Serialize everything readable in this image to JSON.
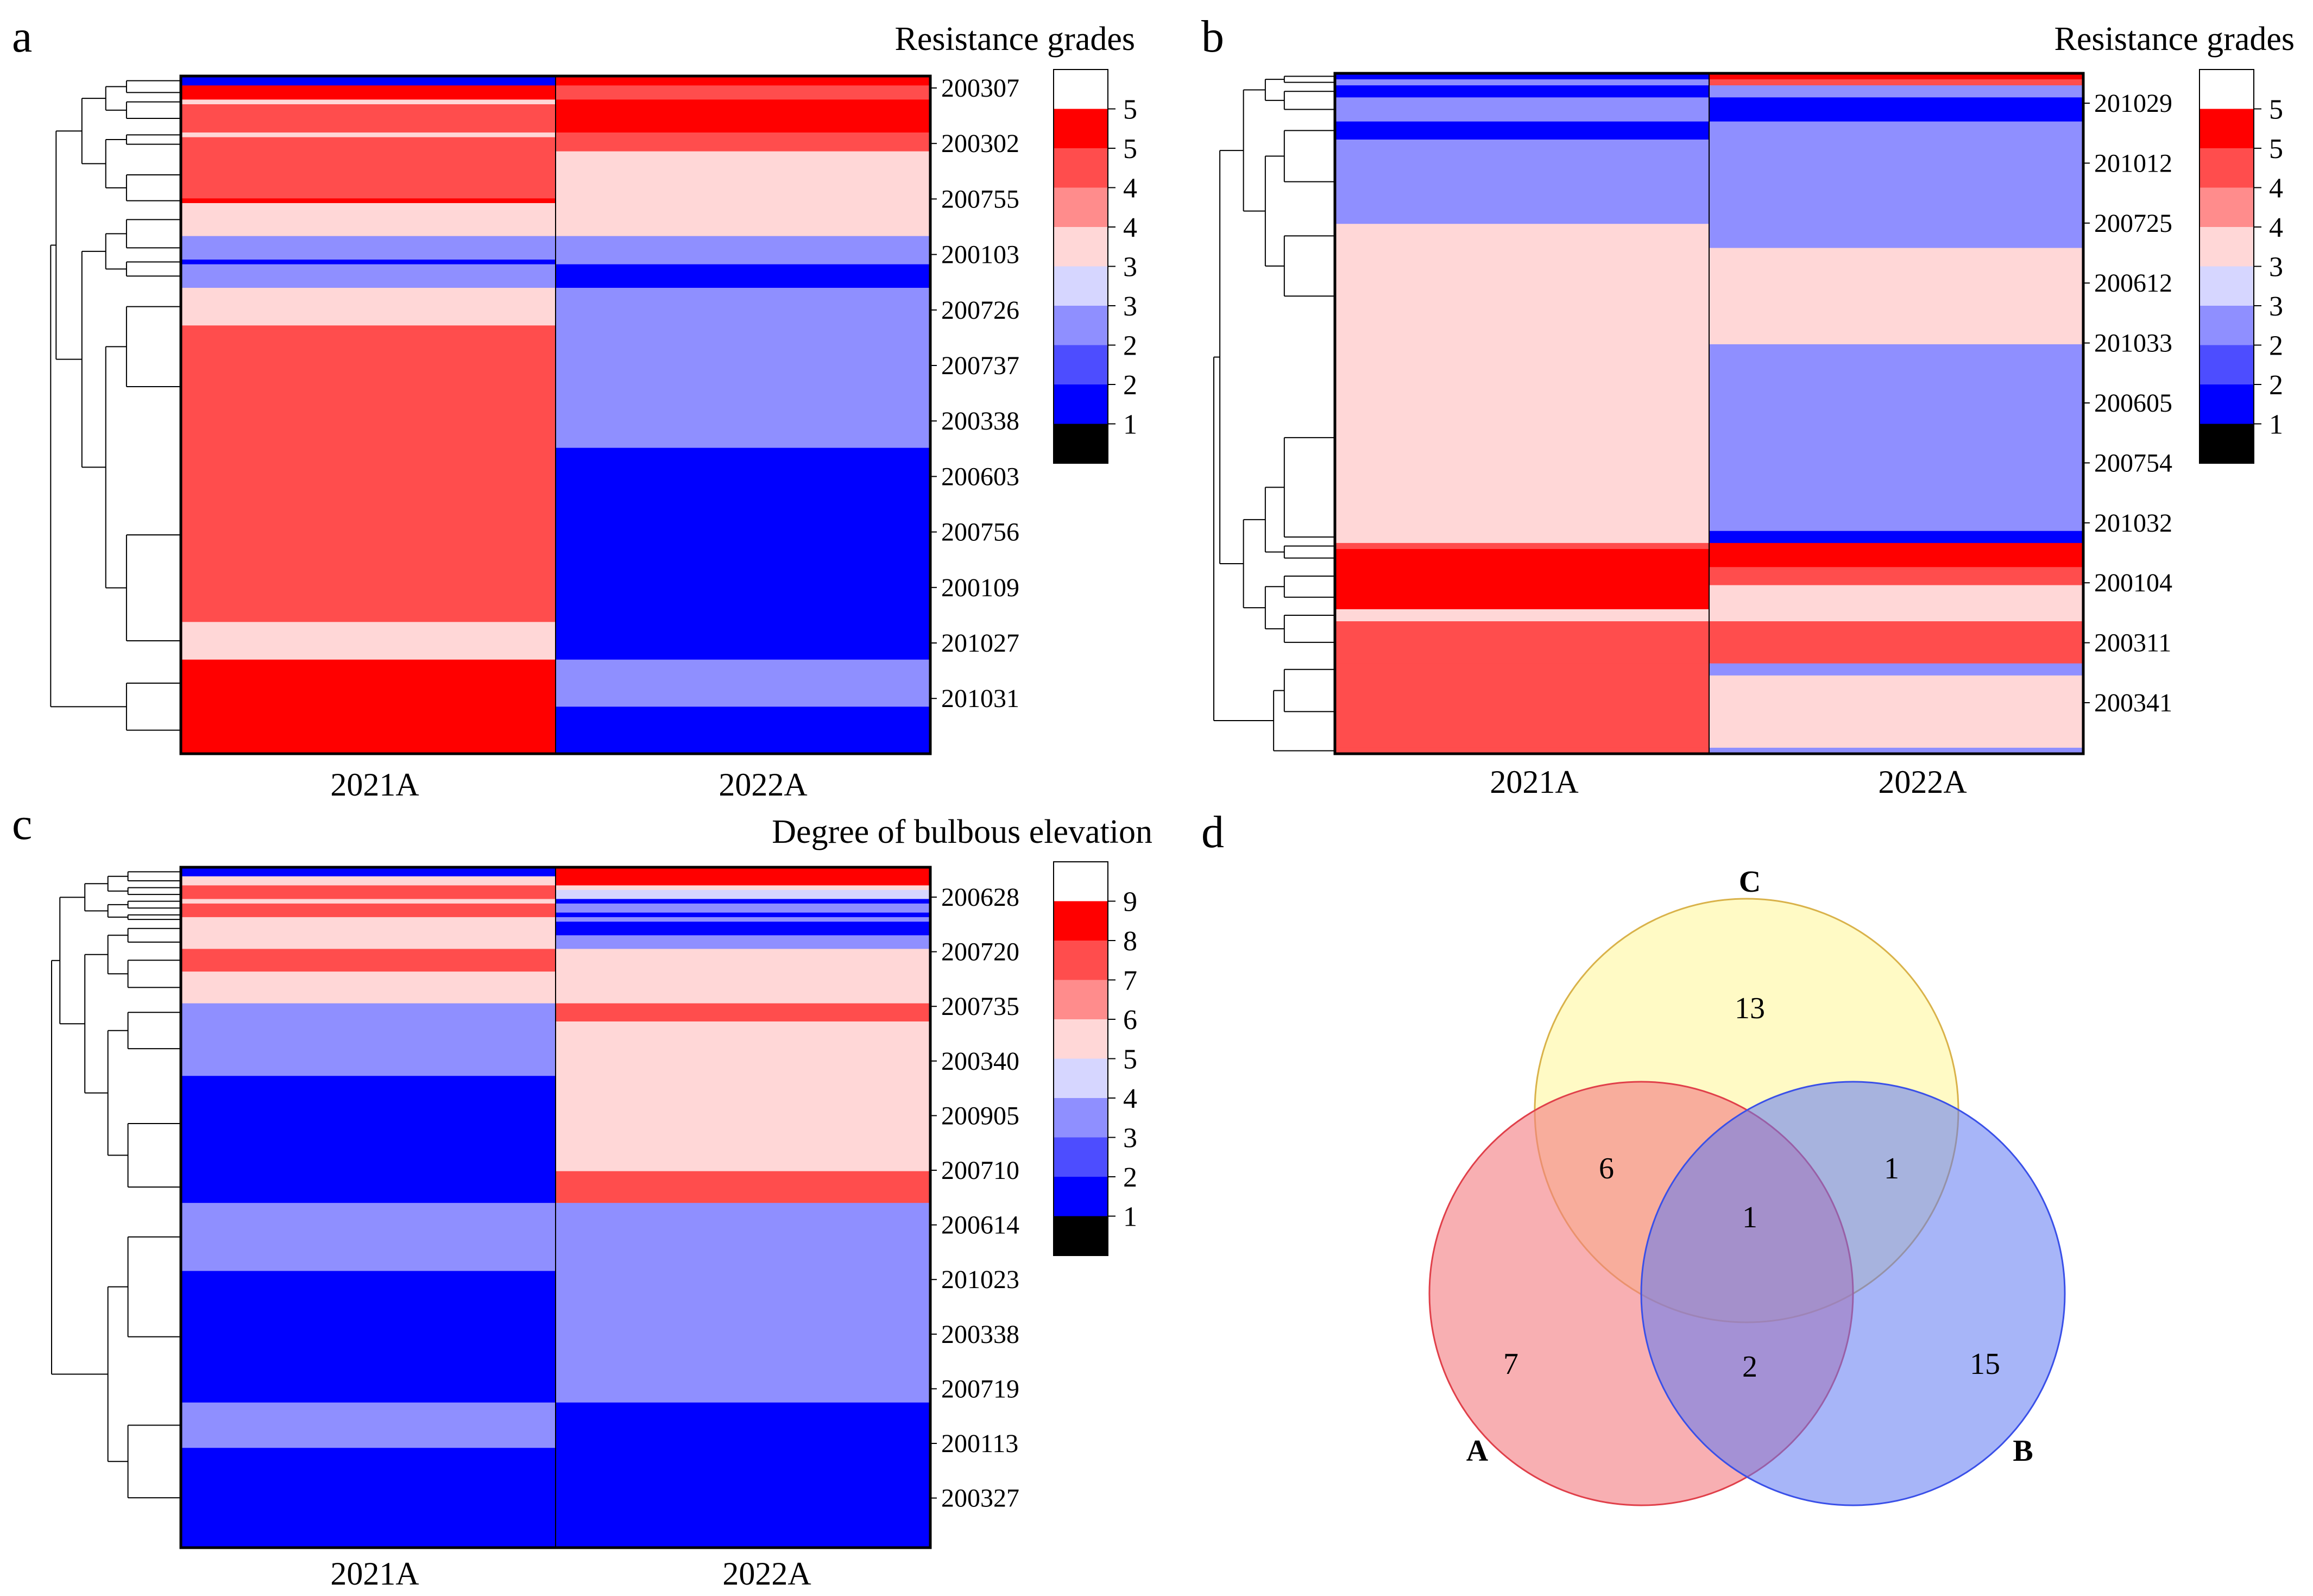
{
  "colors": {
    "grade_palette": [
      "#000000",
      "#0000ff",
      "#4d4dff",
      "#8f8fff",
      "#d6d6ff",
      "#ffd7d7",
      "#ff8c8c",
      "#ff4d4d",
      "#ff0000",
      "#ffffff"
    ],
    "venn_A": "#f47e82",
    "venn_B": "#5f78f2",
    "venn_C": "#fff8a6"
  },
  "chart_data": [
    {
      "panel": "a",
      "type": "heatmap",
      "title": "Resistance grades",
      "columns": [
        "2021A",
        "2022A"
      ],
      "row_labels": [
        "200307",
        "200302",
        "200755",
        "200103",
        "200726",
        "200737",
        "200338",
        "200603",
        "200756",
        "200109",
        "201027",
        "201031"
      ],
      "legend": {
        "labels": [
          "5",
          "5",
          "4",
          "4",
          "3",
          "3",
          "2",
          "2",
          "1"
        ],
        "colors": [
          "#ffffff",
          "#ff0000",
          "#ff4d4d",
          "#ff8c8c",
          "#ffd7d7",
          "#d6d6ff",
          "#8f8fff",
          "#4d4dff",
          "#0000ff",
          "#000000"
        ]
      },
      "blocks": [
        {
          "rows": 2,
          "c2021": 1,
          "c2022": 8
        },
        {
          "rows": 3,
          "c2021": 8,
          "c2022": 7
        },
        {
          "rows": 1,
          "c2021": 5,
          "c2022": 8
        },
        {
          "rows": 6,
          "c2021": 7,
          "c2022": 8
        },
        {
          "rows": 1,
          "c2021": 5,
          "c2022": 7
        },
        {
          "rows": 3,
          "c2021": 7,
          "c2022": 7
        },
        {
          "rows": 10,
          "c2021": 7,
          "c2022": 5
        },
        {
          "rows": 1,
          "c2021": 8,
          "c2022": 5
        },
        {
          "rows": 7,
          "c2021": 5,
          "c2022": 5
        },
        {
          "rows": 5,
          "c2021": 3,
          "c2022": 3
        },
        {
          "rows": 1,
          "c2021": 1,
          "c2022": 3
        },
        {
          "rows": 5,
          "c2021": 3,
          "c2022": 1
        },
        {
          "rows": 8,
          "c2021": 5,
          "c2022": 3
        },
        {
          "rows": 26,
          "c2021": 7,
          "c2022": 3
        },
        {
          "rows": 37,
          "c2021": 7,
          "c2022": 1
        },
        {
          "rows": 8,
          "c2021": 5,
          "c2022": 1
        },
        {
          "rows": 10,
          "c2021": 8,
          "c2022": 3
        },
        {
          "rows": 10,
          "c2021": 8,
          "c2022": 1
        }
      ]
    },
    {
      "panel": "b",
      "type": "heatmap",
      "title": "Resistance grades",
      "columns": [
        "2021A",
        "2022A"
      ],
      "row_labels": [
        "201029",
        "201012",
        "200725",
        "200612",
        "201033",
        "200605",
        "200754",
        "201032",
        "200104",
        "200311",
        "200341"
      ],
      "legend": {
        "labels": [
          "5",
          "5",
          "4",
          "4",
          "3",
          "3",
          "2",
          "2",
          "1"
        ],
        "colors": [
          "#ffffff",
          "#ff0000",
          "#ff4d4d",
          "#ff8c8c",
          "#ffd7d7",
          "#d6d6ff",
          "#8f8fff",
          "#4d4dff",
          "#0000ff",
          "#000000"
        ]
      },
      "blocks": [
        {
          "rows": 1,
          "c2021": 1,
          "c2022": 8
        },
        {
          "rows": 1,
          "c2021": 3,
          "c2022": 7
        },
        {
          "rows": 2,
          "c2021": 1,
          "c2022": 3
        },
        {
          "rows": 4,
          "c2021": 3,
          "c2022": 1
        },
        {
          "rows": 3,
          "c2021": 1,
          "c2022": 3
        },
        {
          "rows": 14,
          "c2021": 3,
          "c2022": 3
        },
        {
          "rows": 4,
          "c2021": 5,
          "c2022": 3
        },
        {
          "rows": 16,
          "c2021": 5,
          "c2022": 5
        },
        {
          "rows": 31,
          "c2021": 5,
          "c2022": 3
        },
        {
          "rows": 2,
          "c2021": 5,
          "c2022": 1
        },
        {
          "rows": 1,
          "c2021": 7,
          "c2022": 8
        },
        {
          "rows": 3,
          "c2021": 8,
          "c2022": 8
        },
        {
          "rows": 3,
          "c2021": 8,
          "c2022": 7
        },
        {
          "rows": 4,
          "c2021": 8,
          "c2022": 5
        },
        {
          "rows": 2,
          "c2021": 5,
          "c2022": 5
        },
        {
          "rows": 7,
          "c2021": 7,
          "c2022": 7
        },
        {
          "rows": 2,
          "c2021": 7,
          "c2022": 3
        },
        {
          "rows": 12,
          "c2021": 7,
          "c2022": 5
        },
        {
          "rows": 1,
          "c2021": 7,
          "c2022": 3
        }
      ]
    },
    {
      "panel": "c",
      "type": "heatmap",
      "title": "Degree of bulbous elevation",
      "columns": [
        "2021A",
        "2022A"
      ],
      "row_labels": [
        "200628",
        "200720",
        "200735",
        "200340",
        "200905",
        "200710",
        "200614",
        "201023",
        "200338",
        "200719",
        "200113",
        "200327"
      ],
      "legend": {
        "labels": [
          "9",
          "8",
          "7",
          "6",
          "5",
          "4",
          "3",
          "2",
          "1"
        ],
        "colors": [
          "#ffffff",
          "#ff0000",
          "#ff4d4d",
          "#ff8c8c",
          "#ffd7d7",
          "#d6d6ff",
          "#8f8fff",
          "#4d4dff",
          "#0000ff",
          "#000000"
        ]
      },
      "blocks": [
        {
          "rows": 2,
          "c2021": 1,
          "c2022": 8
        },
        {
          "rows": 2,
          "c2021": 5,
          "c2022": 8
        },
        {
          "rows": 1,
          "c2021": 7,
          "c2022": 5
        },
        {
          "rows": 2,
          "c2021": 7,
          "c2022": 4
        },
        {
          "rows": 1,
          "c2021": 5,
          "c2022": 1
        },
        {
          "rows": 2,
          "c2021": 7,
          "c2022": 3
        },
        {
          "rows": 1,
          "c2021": 7,
          "c2022": 1
        },
        {
          "rows": 1,
          "c2021": 5,
          "c2022": 3
        },
        {
          "rows": 3,
          "c2021": 5,
          "c2022": 1
        },
        {
          "rows": 3,
          "c2021": 5,
          "c2022": 3
        },
        {
          "rows": 5,
          "c2021": 7,
          "c2022": 5
        },
        {
          "rows": 7,
          "c2021": 5,
          "c2022": 5
        },
        {
          "rows": 4,
          "c2021": 3,
          "c2022": 7
        },
        {
          "rows": 12,
          "c2021": 3,
          "c2022": 5
        },
        {
          "rows": 21,
          "c2021": 1,
          "c2022": 5
        },
        {
          "rows": 7,
          "c2021": 1,
          "c2022": 7
        },
        {
          "rows": 15,
          "c2021": 3,
          "c2022": 3
        },
        {
          "rows": 29,
          "c2021": 1,
          "c2022": 3
        },
        {
          "rows": 10,
          "c2021": 3,
          "c2022": 1
        },
        {
          "rows": 22,
          "c2021": 1,
          "c2022": 1
        }
      ]
    },
    {
      "panel": "d",
      "type": "venn",
      "sets": [
        "A",
        "B",
        "C"
      ],
      "regions": {
        "A_only": "7",
        "B_only": "15",
        "C_only": "13",
        "AC": "6",
        "BC": "1",
        "AB": "2",
        "ABC": "1"
      }
    }
  ]
}
